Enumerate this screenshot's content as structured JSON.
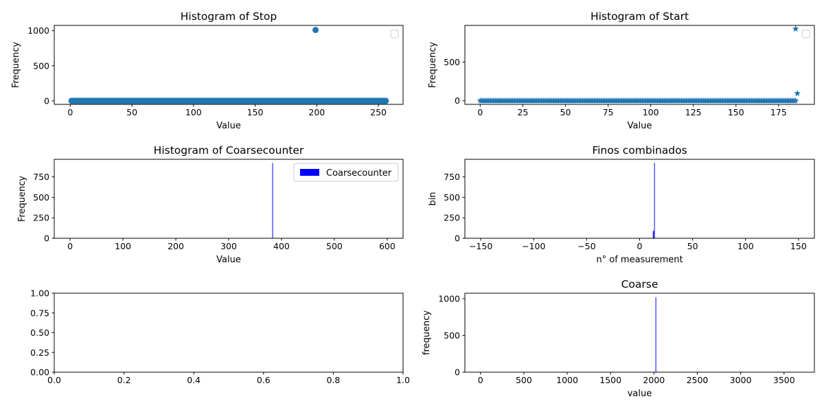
{
  "colors": {
    "series": "#1f77b4",
    "bars": "#0000ff",
    "axis": "#000000"
  },
  "chart_data": [
    {
      "id": "stop",
      "type": "scatter",
      "title": "Histogram of Stop",
      "xlabel": "Value",
      "ylabel": "Frequency",
      "xlim": [
        -13,
        270
      ],
      "ylim": [
        -50,
        1075
      ],
      "xticks": [
        0,
        50,
        100,
        150,
        200,
        250
      ],
      "xtick_labels": [
        "0",
        "50",
        "100",
        "150",
        "200",
        "250"
      ],
      "yticks": [
        0,
        500,
        1000
      ],
      "ytick_labels": [
        "0",
        "500",
        "1000"
      ],
      "legend": "top-right (empty box)",
      "marker": "circle",
      "series": [
        {
          "x_range": [
            1,
            256
          ],
          "baseline_value": 0,
          "outliers": [
            {
              "x": 199,
              "y": 1010
            }
          ]
        }
      ]
    },
    {
      "id": "start",
      "type": "scatter",
      "title": "Histogram of Start",
      "xlabel": "Value",
      "ylabel": "Frequency",
      "xlim": [
        -9,
        196
      ],
      "ylim": [
        -47,
        975
      ],
      "xticks": [
        0,
        25,
        50,
        75,
        100,
        125,
        150,
        175
      ],
      "xtick_labels": [
        "0",
        "25",
        "50",
        "75",
        "100",
        "125",
        "150",
        "175"
      ],
      "yticks": [
        0,
        500
      ],
      "ytick_labels": [
        "0",
        "500"
      ],
      "legend": "top-right (empty box)",
      "marker": "star",
      "series": [
        {
          "x_range": [
            0,
            185
          ],
          "baseline_value": 0,
          "outliers": [
            {
              "x": 185,
              "y": 930
            },
            {
              "x": 186,
              "y": 95
            }
          ]
        }
      ]
    },
    {
      "id": "coarsecounter",
      "type": "bar",
      "title": "Histogram of Coarsecounter",
      "xlabel": "Value",
      "ylabel": "Frequency",
      "xlim": [
        -30,
        630
      ],
      "ylim": [
        0,
        965
      ],
      "xticks": [
        0,
        100,
        200,
        300,
        400,
        500,
        600
      ],
      "xtick_labels": [
        "0",
        "100",
        "200",
        "300",
        "400",
        "500",
        "600"
      ],
      "yticks": [
        0,
        250,
        500,
        750
      ],
      "ytick_labels": [
        "0",
        "250",
        "500",
        "750"
      ],
      "legend": "top-right",
      "series": [
        {
          "name": "Coarsecounter",
          "bars": [
            {
              "x": 383,
              "width": 1,
              "value": 920
            }
          ]
        }
      ]
    },
    {
      "id": "finos",
      "type": "bar",
      "title": "Finos combinados",
      "xlabel": "n° of measurement",
      "ylabel": "bin",
      "xlim": [
        -165,
        165
      ],
      "ylim": [
        0,
        965
      ],
      "xticks": [
        -150,
        -100,
        -50,
        0,
        50,
        100,
        150
      ],
      "xtick_labels": [
        "−150",
        "−100",
        "−50",
        "0",
        "50",
        "100",
        "150"
      ],
      "yticks": [
        0,
        250,
        500,
        750
      ],
      "ytick_labels": [
        "0",
        "250",
        "500",
        "750"
      ],
      "series": [
        {
          "bars": [
            {
              "x": 13,
              "width": 1,
              "value": 90
            },
            {
              "x": 14,
              "width": 0.6,
              "value": 920
            }
          ]
        }
      ]
    },
    {
      "id": "empty",
      "type": "scatter",
      "title": "",
      "xlabel": "",
      "ylabel": "",
      "xlim": [
        0,
        1
      ],
      "ylim": [
        0,
        1
      ],
      "xticks": [
        0,
        0.2,
        0.4,
        0.6,
        0.8,
        1.0
      ],
      "xtick_labels": [
        "0.0",
        "0.2",
        "0.4",
        "0.6",
        "0.8",
        "1.0"
      ],
      "yticks": [
        0,
        0.25,
        0.5,
        0.75,
        1.0
      ],
      "ytick_labels": [
        "0.00",
        "0.25",
        "0.50",
        "0.75",
        "1.00"
      ],
      "series": []
    },
    {
      "id": "coarse",
      "type": "bar",
      "title": "Coarse",
      "xlabel": "value",
      "ylabel": "frequency",
      "xlim": [
        -180,
        3850
      ],
      "ylim": [
        0,
        1075
      ],
      "xticks": [
        0,
        500,
        1000,
        1500,
        2000,
        2500,
        3000,
        3500
      ],
      "xtick_labels": [
        "0",
        "500",
        "1000",
        "1500",
        "2000",
        "2500",
        "3000",
        "3500"
      ],
      "yticks": [
        0,
        500,
        1000
      ],
      "ytick_labels": [
        "0",
        "500",
        "1000"
      ],
      "series": [
        {
          "bars": [
            {
              "x": 2020,
              "width": 4,
              "value": 1020
            }
          ]
        }
      ]
    }
  ]
}
